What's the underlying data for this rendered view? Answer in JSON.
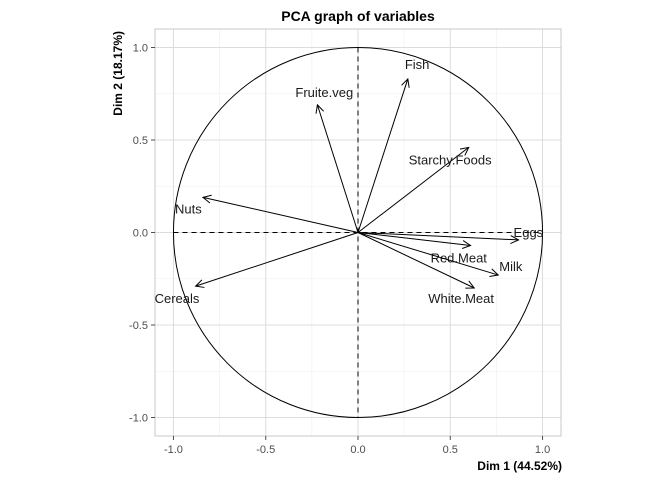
{
  "chart_data": {
    "type": "scatter",
    "title": "PCA graph of variables",
    "xlabel": "Dim 1 (44.52%)",
    "ylabel": "Dim 2 (18.17%)",
    "xlim": [
      -1.1,
      1.1
    ],
    "ylim": [
      -1.1,
      1.1
    ],
    "x_ticks": [
      -1.0,
      -0.5,
      0.0,
      0.5,
      1.0
    ],
    "y_ticks": [
      -1.0,
      -0.5,
      0.0,
      0.5,
      1.0
    ],
    "x_tick_labels": [
      "-1.0",
      "-0.5",
      "0.0",
      "0.5",
      "1.0"
    ],
    "y_tick_labels": [
      "-1.0",
      "-0.5",
      "0.0",
      "0.5",
      "1.0"
    ],
    "grid": true,
    "unit_circle": true,
    "variables": [
      {
        "name": "Fish",
        "x": 0.27,
        "y": 0.83
      },
      {
        "name": "Fruite.veg",
        "x": -0.22,
        "y": 0.69
      },
      {
        "name": "Starchy.Foods",
        "x": 0.6,
        "y": 0.46
      },
      {
        "name": "Nuts",
        "x": -0.84,
        "y": 0.19
      },
      {
        "name": "Eggs",
        "x": 0.87,
        "y": -0.04
      },
      {
        "name": "Red.Meat",
        "x": 0.61,
        "y": -0.07
      },
      {
        "name": "Milk",
        "x": 0.76,
        "y": -0.23
      },
      {
        "name": "White.Meat",
        "x": 0.63,
        "y": -0.3
      },
      {
        "name": "Cereals",
        "x": -0.88,
        "y": -0.29
      }
    ]
  }
}
